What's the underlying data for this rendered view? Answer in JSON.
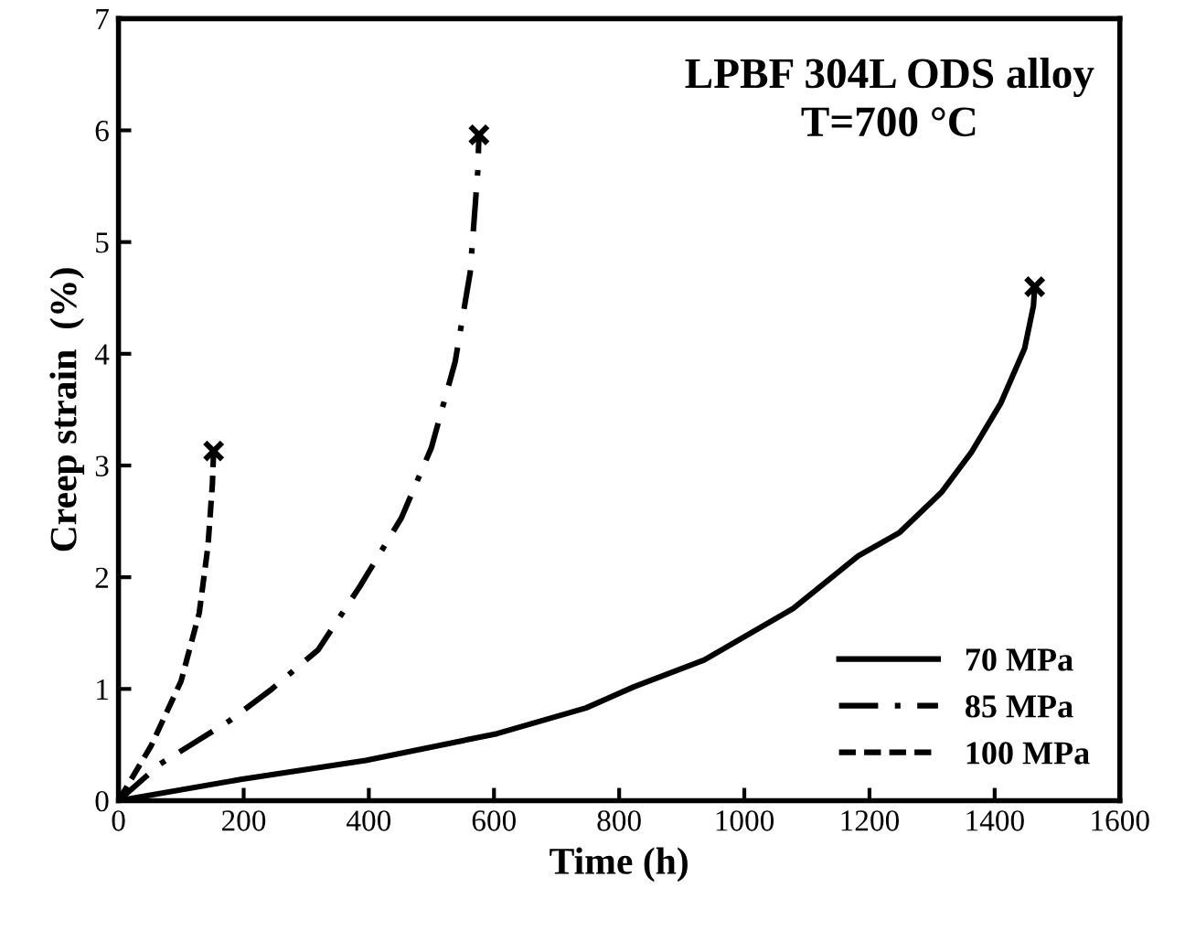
{
  "chart_data": {
    "type": "line",
    "xlabel": "Time (h)",
    "ylabel": "Creep strain  (%)",
    "annotations": [
      "LPBF 304L ODS alloy\nT=700 °C"
    ],
    "xlim": [
      0,
      1600
    ],
    "xticks": [
      0,
      200,
      400,
      600,
      800,
      1000,
      1200,
      1400,
      1600
    ],
    "ylim": [
      0,
      7
    ],
    "yticks": [
      0,
      1,
      2,
      3,
      4,
      5,
      6,
      7
    ],
    "grid": false,
    "legend": "bottom right",
    "series": [
      {
        "name": "70 MPa",
        "color": "#000000",
        "line_style": "solid",
        "x": [
          0,
          195,
          395,
          605,
          747,
          824,
          936,
          1078,
          1182,
          1248,
          1315,
          1363,
          1410,
          1448,
          1462,
          1464
        ],
        "values": [
          0,
          0.19,
          0.36,
          0.6,
          0.83,
          1.02,
          1.26,
          1.72,
          2.19,
          2.4,
          2.76,
          3.12,
          3.56,
          4.05,
          4.43,
          4.6
        ]
      },
      {
        "name": "85 MPa",
        "color": "#000000",
        "line_style": "dashdot",
        "x": [
          0,
          67,
          176,
          243,
          319,
          386,
          452,
          500,
          538,
          562,
          574,
          576
        ],
        "values": [
          0,
          0.33,
          0.71,
          0.99,
          1.35,
          1.92,
          2.53,
          3.16,
          3.93,
          4.73,
          5.63,
          5.96
        ]
      },
      {
        "name": "100 MPa",
        "color": "#000000",
        "line_style": "dashed",
        "x": [
          0,
          52,
          100,
          129,
          143,
          150,
          152
        ],
        "values": [
          0,
          0.49,
          1.07,
          1.68,
          2.28,
          2.83,
          3.13
        ]
      },
      {
        "type": "scatter",
        "marker": "cross",
        "color": "#000000",
        "x": [
          1464,
          576,
          152
        ],
        "values": [
          4.6,
          5.96,
          3.13
        ]
      }
    ]
  }
}
